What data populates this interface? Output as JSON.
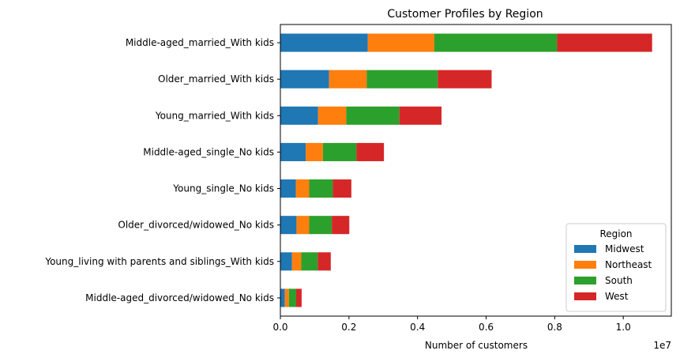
{
  "chart_data": {
    "type": "bar",
    "orientation": "horizontal",
    "stacked": true,
    "title": "Customer Profiles by Region",
    "xlabel": "Number of customers",
    "ylabel": "",
    "x_scale_label": "1e7",
    "xlim": [
      0,
      11400000.0
    ],
    "x_ticks": [
      0,
      2000000,
      4000000,
      6000000,
      8000000,
      10000000
    ],
    "x_tick_labels": [
      "0.0",
      "0.2",
      "0.4",
      "0.6",
      "0.8",
      "1.0"
    ],
    "grid": false,
    "legend": {
      "title": "Region",
      "placement": "lower-right"
    },
    "categories": [
      "Middle-aged_married_With kids",
      "Older_married_With kids",
      "Young_married_With kids",
      "Middle-aged_single_No kids",
      "Young_single_No kids",
      "Older_divorced/widowed_No kids",
      "Young_living with parents and siblings_With kids",
      "Middle-aged_divorced/widowed_No kids"
    ],
    "series": [
      {
        "name": "Midwest",
        "color": "#1f77b4",
        "values": [
          2550000,
          1420000,
          1100000,
          740000,
          450000,
          470000,
          340000,
          130000
        ]
      },
      {
        "name": "Northeast",
        "color": "#ff7f0e",
        "values": [
          1940000,
          1100000,
          820000,
          500000,
          390000,
          370000,
          270000,
          120000
        ]
      },
      {
        "name": "South",
        "color": "#2ca02c",
        "values": [
          3580000,
          2070000,
          1550000,
          980000,
          690000,
          660000,
          480000,
          210000
        ]
      },
      {
        "name": "West",
        "color": "#d62728",
        "values": [
          2770000,
          1570000,
          1230000,
          800000,
          540000,
          510000,
          380000,
          160000
        ]
      }
    ]
  }
}
